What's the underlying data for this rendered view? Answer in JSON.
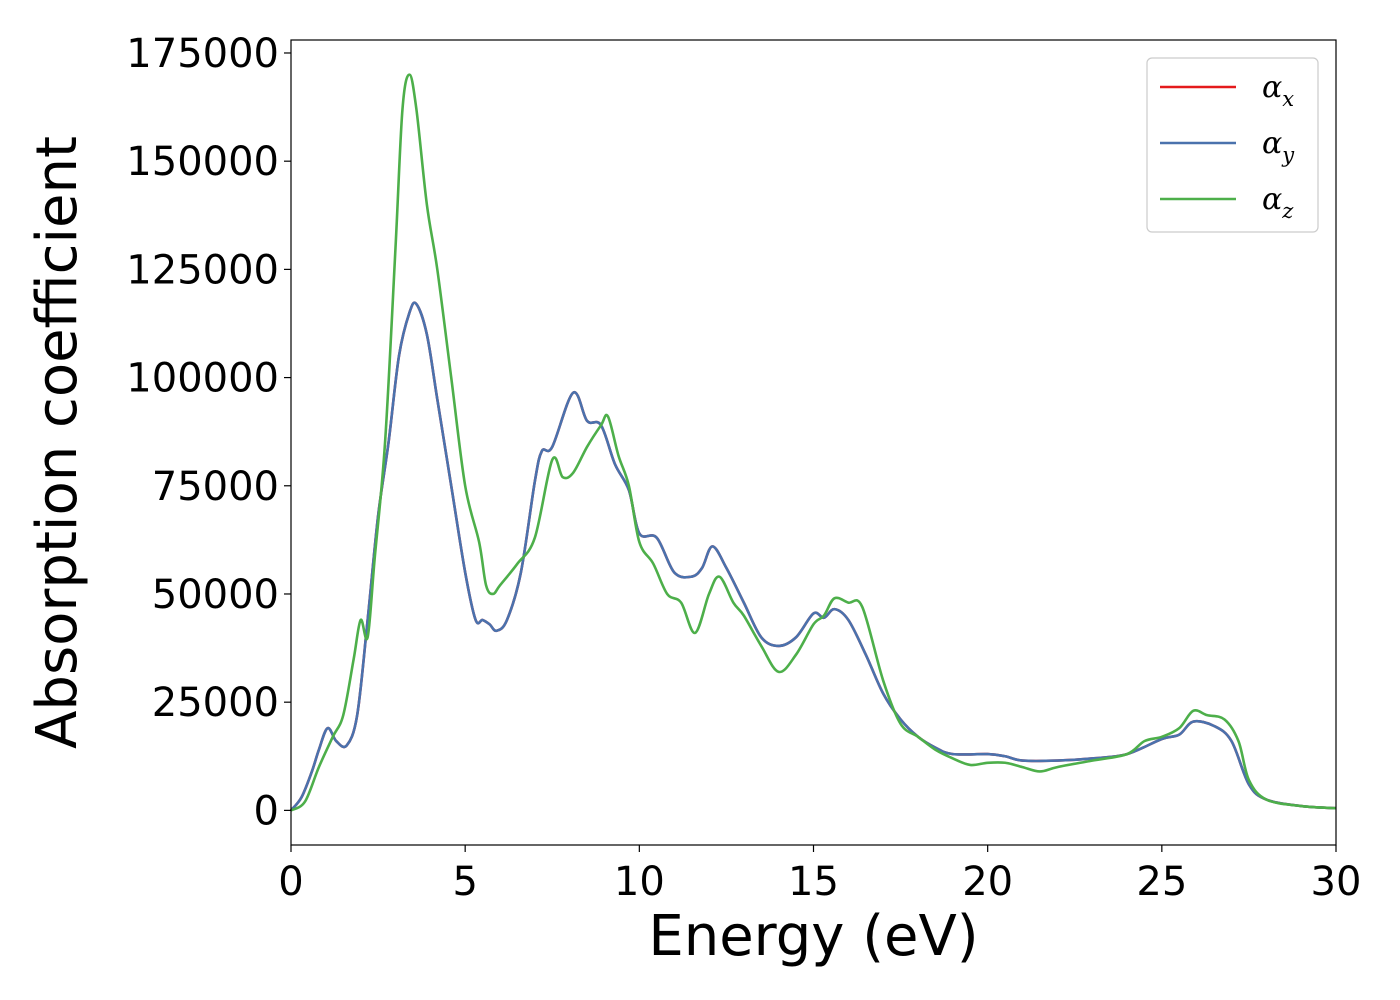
{
  "chart_data": {
    "type": "line",
    "title": "",
    "xlabel": "Energy (eV)",
    "ylabel": "Absorption coefficient",
    "xlim": [
      0,
      30
    ],
    "ylim": [
      -8000,
      178000
    ],
    "xticks": [
      0,
      5,
      10,
      15,
      20,
      25,
      30
    ],
    "xtick_labels": [
      "0",
      "5",
      "10",
      "15",
      "20",
      "25",
      "30"
    ],
    "yticks": [
      0,
      25000,
      50000,
      75000,
      100000,
      125000,
      150000,
      175000
    ],
    "ytick_labels": [
      "0",
      "25000",
      "50000",
      "75000",
      "100000",
      "125000",
      "150000",
      "175000"
    ],
    "grid": false,
    "legend_position": "top-right",
    "series": [
      {
        "name": "αx",
        "label_base": "α",
        "label_sub": "x",
        "color": "#e41a1c",
        "x": [
          0,
          0.3,
          0.6,
          0.8,
          1.05,
          1.3,
          1.6,
          1.9,
          2.2,
          2.5,
          2.8,
          3.1,
          3.4,
          3.6,
          3.9,
          4.2,
          4.6,
          5.0,
          5.3,
          5.5,
          5.7,
          5.9,
          6.2,
          6.6,
          7.0,
          7.2,
          7.5,
          8.1,
          8.5,
          8.9,
          9.3,
          9.7,
          10.0,
          10.5,
          11.0,
          11.5,
          11.8,
          12.1,
          12.5,
          13.0,
          13.5,
          14.0,
          14.5,
          15.0,
          15.3,
          15.6,
          16.0,
          16.5,
          17.0,
          17.5,
          18.0,
          18.5,
          19.0,
          20.0,
          20.5,
          21.0,
          22.0,
          23.0,
          24.0,
          25.0,
          25.5,
          25.9,
          26.5,
          27.0,
          27.5,
          28.0,
          29.0,
          30.0
        ],
        "values": [
          0,
          3000,
          9000,
          14000,
          19000,
          16000,
          15000,
          22000,
          44000,
          68000,
          85000,
          105000,
          115000,
          117000,
          110000,
          95000,
          75000,
          55000,
          44000,
          44000,
          43000,
          41500,
          44000,
          55000,
          76000,
          83000,
          84000,
          96500,
          90000,
          89000,
          80000,
          74000,
          64000,
          63000,
          55000,
          54000,
          56000,
          61000,
          56000,
          48000,
          40000,
          38000,
          40000,
          45500,
          44500,
          46500,
          44000,
          36000,
          27000,
          21000,
          17000,
          14500,
          13000,
          13000,
          12500,
          11500,
          11500,
          12000,
          13000,
          16500,
          17500,
          20500,
          19500,
          16000,
          6000,
          2500,
          1000,
          500
        ]
      },
      {
        "name": "αy",
        "label_base": "α",
        "label_sub": "y",
        "color": "#4a72ad",
        "x": [
          0,
          0.3,
          0.6,
          0.8,
          1.05,
          1.3,
          1.6,
          1.9,
          2.2,
          2.5,
          2.8,
          3.1,
          3.4,
          3.6,
          3.9,
          4.2,
          4.6,
          5.0,
          5.3,
          5.5,
          5.7,
          5.9,
          6.2,
          6.6,
          7.0,
          7.2,
          7.5,
          8.1,
          8.5,
          8.9,
          9.3,
          9.7,
          10.0,
          10.5,
          11.0,
          11.5,
          11.8,
          12.1,
          12.5,
          13.0,
          13.5,
          14.0,
          14.5,
          15.0,
          15.3,
          15.6,
          16.0,
          16.5,
          17.0,
          17.5,
          18.0,
          18.5,
          19.0,
          20.0,
          20.5,
          21.0,
          22.0,
          23.0,
          24.0,
          25.0,
          25.5,
          25.9,
          26.5,
          27.0,
          27.5,
          28.0,
          29.0,
          30.0
        ],
        "values": [
          0,
          3000,
          9000,
          14000,
          19000,
          16000,
          15000,
          22000,
          44000,
          68000,
          85000,
          105000,
          115000,
          117000,
          110000,
          95000,
          75000,
          55000,
          44000,
          44000,
          43000,
          41500,
          44000,
          55000,
          76000,
          83000,
          84000,
          96500,
          90000,
          89000,
          80000,
          74000,
          64000,
          63000,
          55000,
          54000,
          56000,
          61000,
          56000,
          48000,
          40000,
          38000,
          40000,
          45500,
          44500,
          46500,
          44000,
          36000,
          27000,
          21000,
          17000,
          14500,
          13000,
          13000,
          12500,
          11500,
          11500,
          12000,
          13000,
          16500,
          17500,
          20500,
          19500,
          16000,
          6000,
          2500,
          1000,
          500
        ]
      },
      {
        "name": "αz",
        "label_base": "α",
        "label_sub": "z",
        "color": "#4daf4a",
        "x": [
          0,
          0.4,
          0.8,
          1.2,
          1.5,
          1.8,
          2.0,
          2.2,
          2.4,
          2.7,
          3.0,
          3.2,
          3.4,
          3.6,
          3.9,
          4.2,
          4.6,
          5.0,
          5.4,
          5.6,
          5.8,
          6.0,
          6.5,
          7.0,
          7.5,
          7.8,
          8.1,
          8.5,
          8.9,
          9.1,
          9.4,
          9.7,
          10.0,
          10.4,
          10.8,
          11.2,
          11.6,
          12.0,
          12.3,
          12.7,
          13.0,
          13.5,
          14.0,
          14.5,
          15.0,
          15.3,
          15.6,
          16.0,
          16.4,
          17.0,
          17.5,
          18.0,
          18.5,
          19.0,
          19.5,
          20.0,
          20.5,
          21.0,
          21.5,
          22.0,
          23.0,
          24.0,
          24.5,
          25.0,
          25.5,
          25.9,
          26.3,
          26.8,
          27.2,
          27.5,
          28.0,
          29.0,
          30.0
        ],
        "values": [
          0,
          2000,
          10000,
          17000,
          22000,
          35000,
          44000,
          40000,
          58000,
          85000,
          130000,
          162000,
          170000,
          162000,
          140000,
          125000,
          100000,
          75000,
          62000,
          52000,
          50000,
          52000,
          57000,
          63000,
          81000,
          77000,
          78000,
          84000,
          89000,
          91000,
          82000,
          75000,
          62000,
          57000,
          50000,
          48000,
          41000,
          50000,
          54000,
          48000,
          45000,
          38000,
          32000,
          36000,
          43000,
          45000,
          49000,
          48000,
          47000,
          30000,
          20000,
          17000,
          14000,
          12000,
          10500,
          11000,
          11000,
          10000,
          9000,
          10000,
          11500,
          13000,
          16000,
          17000,
          19000,
          23000,
          22000,
          21000,
          16000,
          7000,
          2500,
          1000,
          500
        ]
      }
    ]
  }
}
